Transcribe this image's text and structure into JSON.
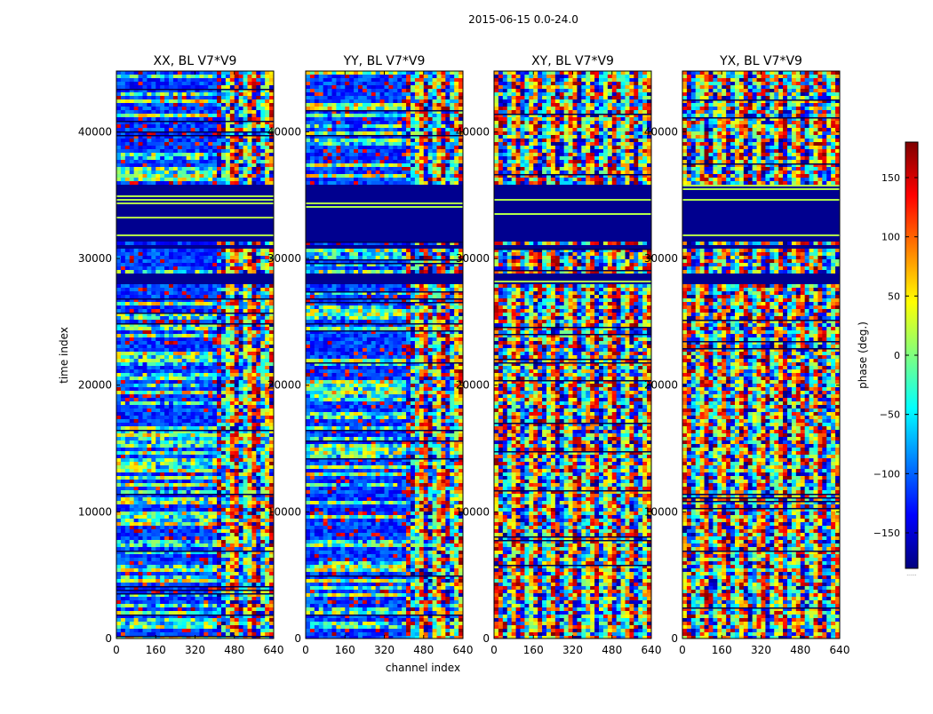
{
  "figure": {
    "suptitle": "2015-06-15 0.0-24.0"
  },
  "chart_data": {
    "type": "heatmap",
    "xlabel": "channel index",
    "ylabel": "time index",
    "xlim": [
      0,
      640
    ],
    "ylim": [
      0,
      44800
    ],
    "xticks": [
      0,
      160,
      320,
      480,
      640
    ],
    "yticks": [
      0,
      10000,
      20000,
      30000,
      40000
    ],
    "grid": false,
    "panels": [
      {
        "title": "XX, BL V7*V9",
        "kind": "parallel",
        "split_channel": 400
      },
      {
        "title": "YY, BL V7*V9",
        "kind": "parallel",
        "split_channel": 400
      },
      {
        "title": "XY, BL V7*V9",
        "kind": "cross",
        "split_channel": 400
      },
      {
        "title": "YX, BL V7*V9",
        "kind": "cross",
        "split_channel": 400
      }
    ],
    "flagged_time_ranges": [
      [
        30800,
        31150
      ],
      [
        31450,
        35950
      ],
      [
        28200,
        29000
      ]
    ],
    "colorbar": {
      "label": "phase (deg.)",
      "vmin": -180,
      "vmax": 180,
      "ticks": [
        -150,
        -100,
        -50,
        0,
        50,
        100,
        150
      ],
      "colormap": "jet",
      "extra_label": "......"
    },
    "colors": {
      "flagged": "#00008f",
      "jet_stops": [
        "#00007f",
        "#0000ff",
        "#007fff",
        "#00ffff",
        "#7fff7f",
        "#ffff00",
        "#ff7f00",
        "#ff0000",
        "#7f0000"
      ]
    }
  }
}
